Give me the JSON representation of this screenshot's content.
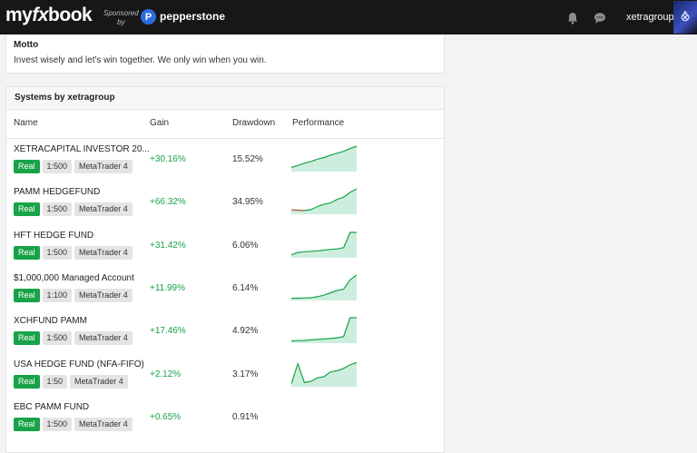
{
  "header": {
    "logo_pre": "my",
    "logo_fx": "fx",
    "logo_post": "book",
    "sponsored_line1": "Sponsored",
    "sponsored_line2": "by",
    "sponsor_name": "pepperstone",
    "username": "xetragroup"
  },
  "motto": {
    "title": "Motto",
    "text": "Invest wisely and let's win together. We only win when you win."
  },
  "systems": {
    "title": "Systems by xetragroup",
    "columns": {
      "name": "Name",
      "gain": "Gain",
      "drawdown": "Drawdown",
      "performance": "Performance"
    },
    "rows": [
      {
        "name": "XETRACAPITAL INVESTOR 20...",
        "type": "Real",
        "leverage": "1:500",
        "platform": "MetaTrader 4",
        "gain": "+30.16%",
        "drawdown": "15.52%",
        "spark": [
          0.1,
          0.18,
          0.28,
          0.35,
          0.45,
          0.52,
          0.62,
          0.7,
          0.78,
          0.9,
          1.0
        ],
        "has_chart": true
      },
      {
        "name": "PAMM HEDGEFUND",
        "type": "Real",
        "leverage": "1:500",
        "platform": "MetaTrader 4",
        "gain": "+66.32%",
        "drawdown": "34.95%",
        "spark": [
          0.1,
          0.1,
          0.08,
          0.12,
          0.25,
          0.35,
          0.4,
          0.55,
          0.65,
          0.85,
          1.0
        ],
        "has_chart": true
      },
      {
        "name": "HFT HEDGE FUND",
        "type": "Real",
        "leverage": "1:500",
        "platform": "MetaTrader 4",
        "gain": "+31.42%",
        "drawdown": "6.06%",
        "spark": [
          0.05,
          0.15,
          0.18,
          0.2,
          0.22,
          0.25,
          0.28,
          0.3,
          0.35,
          1.0,
          1.0
        ],
        "has_chart": true
      },
      {
        "name": "$1,000,000 Managed Account",
        "type": "Real",
        "leverage": "1:100",
        "platform": "MetaTrader 4",
        "gain": "+11.99%",
        "drawdown": "6.14%",
        "spark": [
          0.02,
          0.02,
          0.03,
          0.04,
          0.08,
          0.15,
          0.25,
          0.35,
          0.4,
          0.8,
          1.0
        ],
        "has_chart": true
      },
      {
        "name": "XCHFUND PAMM",
        "type": "Real",
        "leverage": "1:500",
        "platform": "MetaTrader 4",
        "gain": "+17.46%",
        "drawdown": "4.92%",
        "spark": [
          0.02,
          0.03,
          0.04,
          0.06,
          0.08,
          0.1,
          0.12,
          0.15,
          0.2,
          1.0,
          1.0
        ],
        "has_chart": true
      },
      {
        "name": "USA HEDGE FUND (NFA-FIFO)",
        "type": "Real",
        "leverage": "1:50",
        "platform": "MetaTrader 4",
        "gain": "+2.12%",
        "drawdown": "3.17%",
        "spark": [
          0.05,
          0.9,
          0.1,
          0.15,
          0.3,
          0.35,
          0.55,
          0.6,
          0.7,
          0.85,
          0.95
        ],
        "has_chart": true
      },
      {
        "name": "EBC PAMM FUND",
        "type": "Real",
        "leverage": "1:500",
        "platform": "MetaTrader 4",
        "gain": "+0.65%",
        "drawdown": "0.91%",
        "spark": [],
        "has_chart": false
      }
    ]
  },
  "colors": {
    "gain_green": "#18a348",
    "loss_red": "#d9534f",
    "spark_fill": "#cdeede",
    "topbar": "#171717"
  },
  "icons": {
    "notifications": "bell-icon",
    "messages": "chat-icon",
    "sponsor": "pepperstone-logo-icon"
  }
}
